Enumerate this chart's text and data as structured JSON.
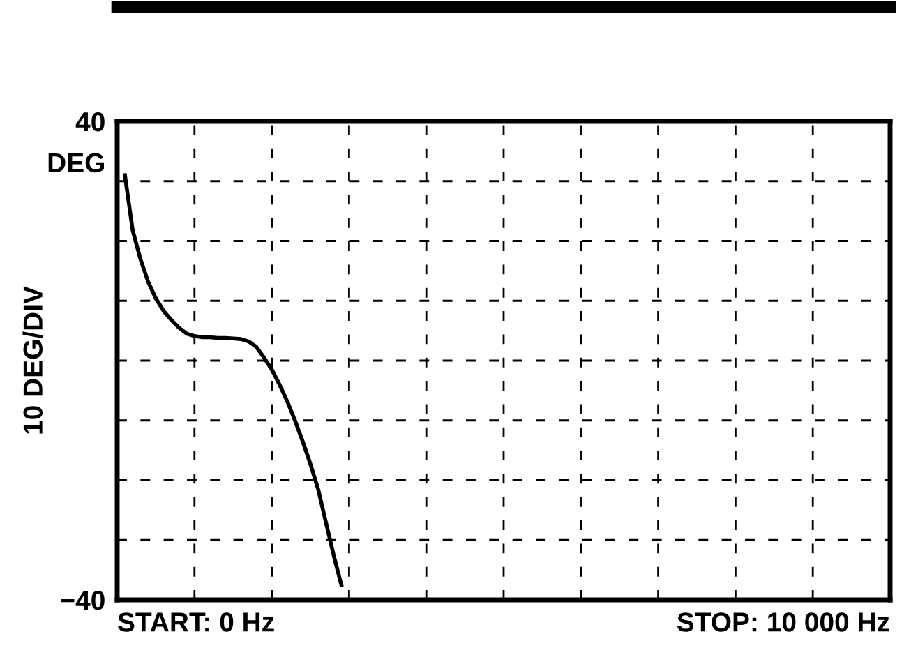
{
  "chart_data": {
    "type": "line",
    "ylabel": "10 DEG/DIV",
    "annotations": [
      "DEG",
      "START: 0 Hz",
      "STOP: 10 000 Hz"
    ],
    "categories": [
      null,
      null,
      null,
      null,
      null,
      null,
      null,
      null,
      null,
      null,
      null,
      null,
      null,
      null,
      null,
      null,
      null,
      null,
      null,
      null,
      null,
      null,
      null,
      null,
      null,
      null,
      null,
      null,
      null,
      null,
      null,
      null,
      null,
      null,
      null,
      null,
      null,
      null,
      null,
      null,
      null,
      null,
      null,
      null,
      null,
      null,
      null,
      null,
      null,
      null,
      null,
      null,
      null,
      null,
      null,
      null,
      null,
      null,
      null,
      null,
      null,
      null,
      null,
      null,
      null,
      null,
      null,
      null,
      null,
      null,
      null,
      null,
      null,
      null,
      null,
      null,
      null,
      null,
      null,
      null,
      null,
      null,
      null,
      null,
      null,
      null,
      null,
      null,
      null,
      null,
      null,
      null,
      null,
      null,
      null,
      null,
      null,
      null,
      null,
      null,
      null
    ],
    "series": [
      {
        "color": "#000000",
        "values": [
          null,
          31,
          21.8,
          17,
          13.2,
          10.4,
          8.3,
          6.8,
          5.5,
          4.5,
          4.1,
          3.9,
          3.9,
          3.8,
          3.8,
          3.7,
          3.6,
          3.2,
          2.3,
          0.5,
          -1.5,
          -4,
          -6.8,
          -10,
          -13.5,
          -17.3,
          -21.5,
          -27,
          -32.5,
          -37.5,
          null,
          null,
          null,
          null,
          null,
          null,
          null,
          null,
          null,
          null,
          null,
          null,
          null,
          null,
          null,
          null,
          null,
          null,
          null,
          null,
          null,
          null,
          null,
          null,
          null,
          null,
          null,
          null,
          null,
          null,
          null,
          null,
          null,
          null,
          null,
          null,
          null,
          null,
          null,
          null,
          null,
          null,
          null,
          null,
          null,
          null,
          null,
          null,
          null,
          null,
          null,
          null,
          null,
          null,
          null,
          null,
          null,
          null,
          null,
          null,
          null,
          null,
          null,
          null,
          null,
          null,
          null,
          null,
          null,
          null,
          null
        ]
      }
    ],
    "ylim": [
      -40,
      40
    ],
    "yticks": [
      {
        "value": -40,
        "label": "−40"
      },
      {
        "value": -30,
        "label": null
      },
      {
        "value": -20,
        "label": null
      },
      {
        "value": -10,
        "label": null
      },
      {
        "value": 0,
        "label": null
      },
      {
        "value": 10,
        "label": null
      },
      {
        "value": 20,
        "label": null
      },
      {
        "value": 30,
        "label": null
      },
      {
        "value": 40,
        "label": "40"
      }
    ],
    "grid": true,
    "line_style": "solid",
    "marker": "none",
    "tick_labels": "y"
  }
}
